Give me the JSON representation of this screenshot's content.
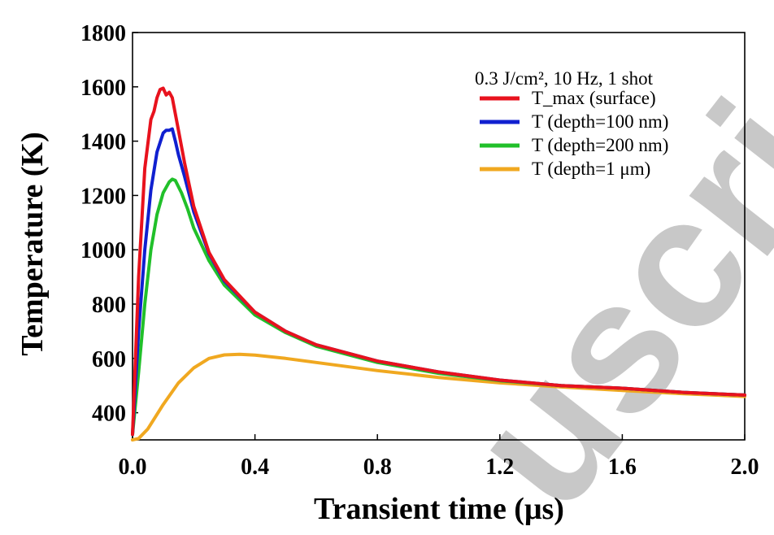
{
  "chart_data": {
    "type": "line",
    "title": "",
    "xlabel": "Transient time (μs)",
    "ylabel": "Temperature (K)",
    "xlim": [
      0.0,
      2.0
    ],
    "ylim": [
      300,
      1800
    ],
    "xticks": [
      0.0,
      0.4,
      0.8,
      1.2,
      1.6,
      2.0
    ],
    "xtick_labels": [
      "0.0",
      "0.4",
      "0.8",
      "1.2",
      "1.6",
      "2.0"
    ],
    "yticks": [
      400,
      600,
      800,
      1000,
      1200,
      1400,
      1600,
      1800
    ],
    "ytick_labels": [
      "400",
      "600",
      "800",
      "1000",
      "1200",
      "1400",
      "1600",
      "1800"
    ],
    "legend_title": "0.3 J/cm², 10 Hz, 1 shot",
    "legend_position": "top-right",
    "grid": false,
    "series": [
      {
        "name": "T_max (surface)",
        "color": "#e8121d",
        "x": [
          0.0,
          0.02,
          0.04,
          0.06,
          0.07,
          0.08,
          0.09,
          0.1,
          0.11,
          0.12,
          0.13,
          0.14,
          0.15,
          0.17,
          0.2,
          0.25,
          0.3,
          0.4,
          0.5,
          0.6,
          0.8,
          1.0,
          1.2,
          1.4,
          1.6,
          1.8,
          2.0
        ],
        "y": [
          320,
          900,
          1300,
          1480,
          1510,
          1560,
          1590,
          1595,
          1570,
          1580,
          1560,
          1500,
          1440,
          1320,
          1160,
          990,
          890,
          770,
          700,
          650,
          590,
          550,
          520,
          500,
          490,
          475,
          465
        ]
      },
      {
        "name": "T (depth=100 nm)",
        "color": "#1020d0",
        "x": [
          0.0,
          0.02,
          0.04,
          0.06,
          0.08,
          0.1,
          0.11,
          0.12,
          0.13,
          0.14,
          0.15,
          0.17,
          0.2,
          0.25,
          0.3,
          0.4,
          0.5,
          0.6,
          0.8,
          1.0,
          1.2,
          1.4,
          1.6,
          1.8,
          2.0
        ],
        "y": [
          320,
          700,
          1000,
          1220,
          1360,
          1430,
          1440,
          1440,
          1445,
          1400,
          1350,
          1270,
          1140,
          985,
          885,
          770,
          700,
          650,
          590,
          550,
          520,
          500,
          490,
          475,
          465
        ]
      },
      {
        "name": "T (depth=200 nm)",
        "color": "#21c02a",
        "x": [
          0.0,
          0.02,
          0.04,
          0.06,
          0.08,
          0.1,
          0.12,
          0.13,
          0.14,
          0.16,
          0.18,
          0.2,
          0.25,
          0.3,
          0.4,
          0.5,
          0.6,
          0.8,
          1.0,
          1.2,
          1.4,
          1.6,
          1.8,
          2.0
        ],
        "y": [
          320,
          550,
          800,
          1000,
          1130,
          1210,
          1250,
          1260,
          1255,
          1210,
          1150,
          1080,
          960,
          870,
          760,
          695,
          645,
          585,
          545,
          518,
          500,
          490,
          475,
          465
        ]
      },
      {
        "name": "T (depth=1 μm)",
        "color": "#f0a820",
        "x": [
          0.0,
          0.02,
          0.05,
          0.1,
          0.15,
          0.2,
          0.25,
          0.3,
          0.35,
          0.4,
          0.5,
          0.6,
          0.8,
          1.0,
          1.2,
          1.4,
          1.6,
          1.8,
          2.0
        ],
        "y": [
          300,
          305,
          340,
          430,
          510,
          565,
          600,
          613,
          615,
          612,
          600,
          585,
          555,
          530,
          510,
          495,
          482,
          470,
          460
        ]
      }
    ]
  },
  "watermark": {
    "text": "uscri",
    "color": "#c8c8c8"
  }
}
